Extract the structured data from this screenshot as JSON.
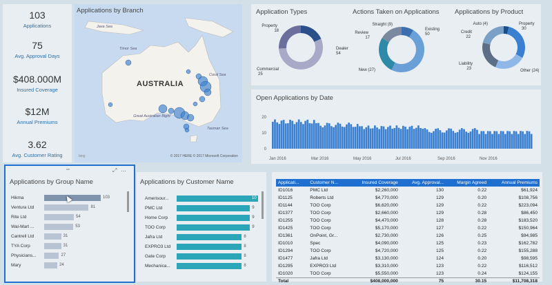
{
  "kpis": [
    {
      "value": "103",
      "label": "Applications"
    },
    {
      "value": "75",
      "label": "Avg. Approval Days"
    },
    {
      "value": "$408.000M",
      "label": "Insured Coverage"
    },
    {
      "value": "$12M",
      "label": "Annual Premiums"
    },
    {
      "value": "3.62",
      "label": "Avg. Customer Rating"
    }
  ],
  "map": {
    "title": "Applications by Branch",
    "country_label": "AUSTRALIA",
    "sea_labels": [
      "Java Sea",
      "Timor Sea",
      "Coral Sea",
      "Great Australian Bight",
      "Tasman Sea"
    ],
    "footer": "© 2017 HERE   © 2017 Microsoft Corporation",
    "logo": "bing"
  },
  "donuts": {
    "types": {
      "title": "Application Types",
      "slices": [
        {
          "name": "Property",
          "value": 18,
          "color": "#2a4f8a"
        },
        {
          "name": "Dealer",
          "value": 54,
          "color": "#a7a9c7"
        },
        {
          "name": "Commercial",
          "value": 25,
          "color": "#6b6f9e"
        }
      ],
      "labels": [
        "Property",
        "18",
        "Dealer",
        "54",
        "Commercial",
        "25"
      ]
    },
    "actions": {
      "title": "Actions Taken on Applications",
      "slices": [
        {
          "name": "Straight",
          "value": 9,
          "color": "#3d6fb0"
        },
        {
          "name": "Existing",
          "value": 50,
          "color": "#6aa0d8"
        },
        {
          "name": "New",
          "value": 27,
          "color": "#2f8aa8"
        },
        {
          "name": "Review",
          "value": 17,
          "color": "#7a88a0"
        }
      ],
      "labels": [
        "Straight (9)",
        "Existing",
        "50",
        "Review",
        "17",
        "New (27)"
      ]
    },
    "product": {
      "title": "Applications by Product",
      "slices": [
        {
          "name": "Auto",
          "value": 4,
          "color": "#1b4c8a"
        },
        {
          "name": "Property",
          "value": 30,
          "color": "#3a7fd0"
        },
        {
          "name": "Other",
          "value": 24,
          "color": "#8fb8e8"
        },
        {
          "name": "Liability",
          "value": 23,
          "color": "#5d6f86"
        },
        {
          "name": "Credit",
          "value": 22,
          "color": "#7aa0c8"
        }
      ],
      "labels": [
        "Auto (4)",
        "Property",
        "30",
        "Credit",
        "22",
        "Liability",
        "23",
        "Other (24)"
      ]
    }
  },
  "open_apps": {
    "title": "Open Applications by Date",
    "y_ticks": [
      "20",
      "10",
      "0"
    ],
    "x_ticks": [
      "Jan 2016",
      "Mar 2016",
      "May 2016",
      "Jul 2016",
      "Sep 2016",
      "Nov 2016"
    ],
    "color": "#3a7fd0"
  },
  "group": {
    "title": "Applications by Group Name",
    "items": [
      {
        "name": "Hikma",
        "value": 103
      },
      {
        "name": "Ventura Ltd",
        "value": 81
      },
      {
        "name": "Rite Ltd",
        "value": 54
      },
      {
        "name": "Wal-Mart ...",
        "value": 53
      },
      {
        "name": "Cantrell Ltd",
        "value": 31
      },
      {
        "name": "TYA Corp",
        "value": 31
      },
      {
        "name": "Physicians...",
        "value": 27
      },
      {
        "name": "Mary",
        "value": 24
      }
    ]
  },
  "customer": {
    "title": "Applications by Customer Name",
    "items": [
      {
        "name": "Amerisour...",
        "value": 10
      },
      {
        "name": "PMC Ltd",
        "value": 9
      },
      {
        "name": "Home Corp",
        "value": 9
      },
      {
        "name": "TOO Corp",
        "value": 9
      },
      {
        "name": "Jafra Ltd",
        "value": 8
      },
      {
        "name": "EXPRO3 Ltd",
        "value": 8
      },
      {
        "name": "Gate Corp",
        "value": 8
      },
      {
        "name": "Mechanica...",
        "value": 8
      }
    ]
  },
  "table": {
    "headers": [
      "Applicati...",
      "Customer N...",
      "Insured Coverage",
      "Avg. Approval...",
      "Margin Agreed",
      "Annual Premiums"
    ],
    "rows": [
      [
        "ID1016",
        "PMC Ltd",
        "$2,260,000",
        "130",
        "0.22",
        "$61,924"
      ],
      [
        "ID1125",
        "Roberts Ltd",
        "$4,770,000",
        "129",
        "0.20",
        "$108,756"
      ],
      [
        "ID1144",
        "TOO Corp",
        "$6,620,000",
        "129",
        "0.22",
        "$223,094"
      ],
      [
        "ID1377",
        "TOO Corp",
        "$2,660,000",
        "129",
        "0.28",
        "$86,450"
      ],
      [
        "ID1255",
        "TOO Corp",
        "$4,470,000",
        "128",
        "0.28",
        "$183,520"
      ],
      [
        "ID1425",
        "TOO Corp",
        "$5,170,000",
        "127",
        "0.22",
        "$150,964"
      ],
      [
        "ID1361",
        "OnPoint, Gr...",
        "$2,730,000",
        "126",
        "0.25",
        "$94,985"
      ],
      [
        "ID1010",
        "Spec",
        "$4,090,000",
        "125",
        "0.23",
        "$162,782"
      ],
      [
        "ID1294",
        "TOO Corp",
        "$4,720,000",
        "125",
        "0.22",
        "$155,288"
      ],
      [
        "ID1477",
        "Jafra Ltd",
        "$3,130,000",
        "124",
        "0.20",
        "$98,595"
      ],
      [
        "ID1295",
        "EXPRO3 Ltd",
        "$3,310,000",
        "123",
        "0.22",
        "$116,512"
      ],
      [
        "ID1020",
        "TOO Corp",
        "$5,550,000",
        "123",
        "0.24",
        "$124,155"
      ]
    ],
    "total": [
      "Total",
      "",
      "$408,000,000",
      "75",
      "30.15",
      "$11,708,318"
    ]
  }
}
